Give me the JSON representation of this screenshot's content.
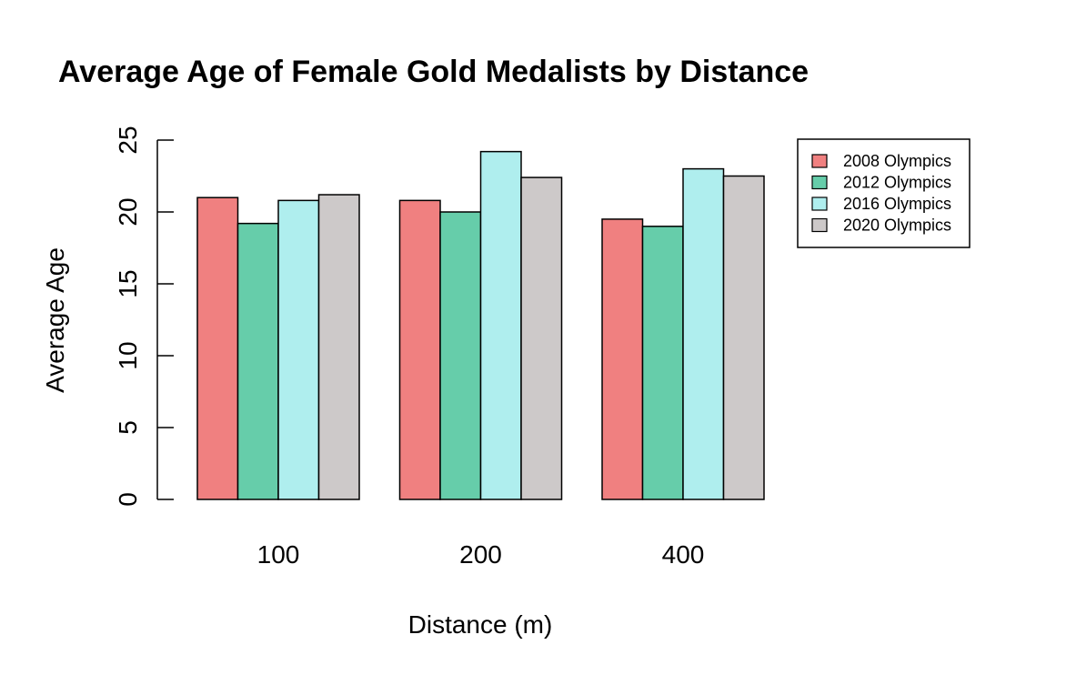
{
  "chart_data": {
    "type": "bar",
    "title": "Average Age of Female Gold Medalists by Distance",
    "xlabel": "Distance (m)",
    "ylabel": "Average Age",
    "categories": [
      "100",
      "200",
      "400"
    ],
    "series": [
      {
        "name": "2008 Olympics",
        "color": "#F08080",
        "values": [
          21.0,
          20.8,
          19.5
        ]
      },
      {
        "name": "2012 Olympics",
        "color": "#66CDAA",
        "values": [
          19.2,
          20.0,
          19.0
        ]
      },
      {
        "name": "2016 Olympics",
        "color": "#AFEEEE",
        "values": [
          20.8,
          24.2,
          23.0
        ]
      },
      {
        "name": "2020 Olympics",
        "color": "#CDC9C9",
        "values": [
          21.2,
          22.4,
          22.5
        ]
      }
    ],
    "ylim": [
      0,
      25
    ],
    "yticks": [
      "0",
      "5",
      "10",
      "15",
      "20",
      "25"
    ],
    "legend_position": "top-right",
    "grid": false
  }
}
